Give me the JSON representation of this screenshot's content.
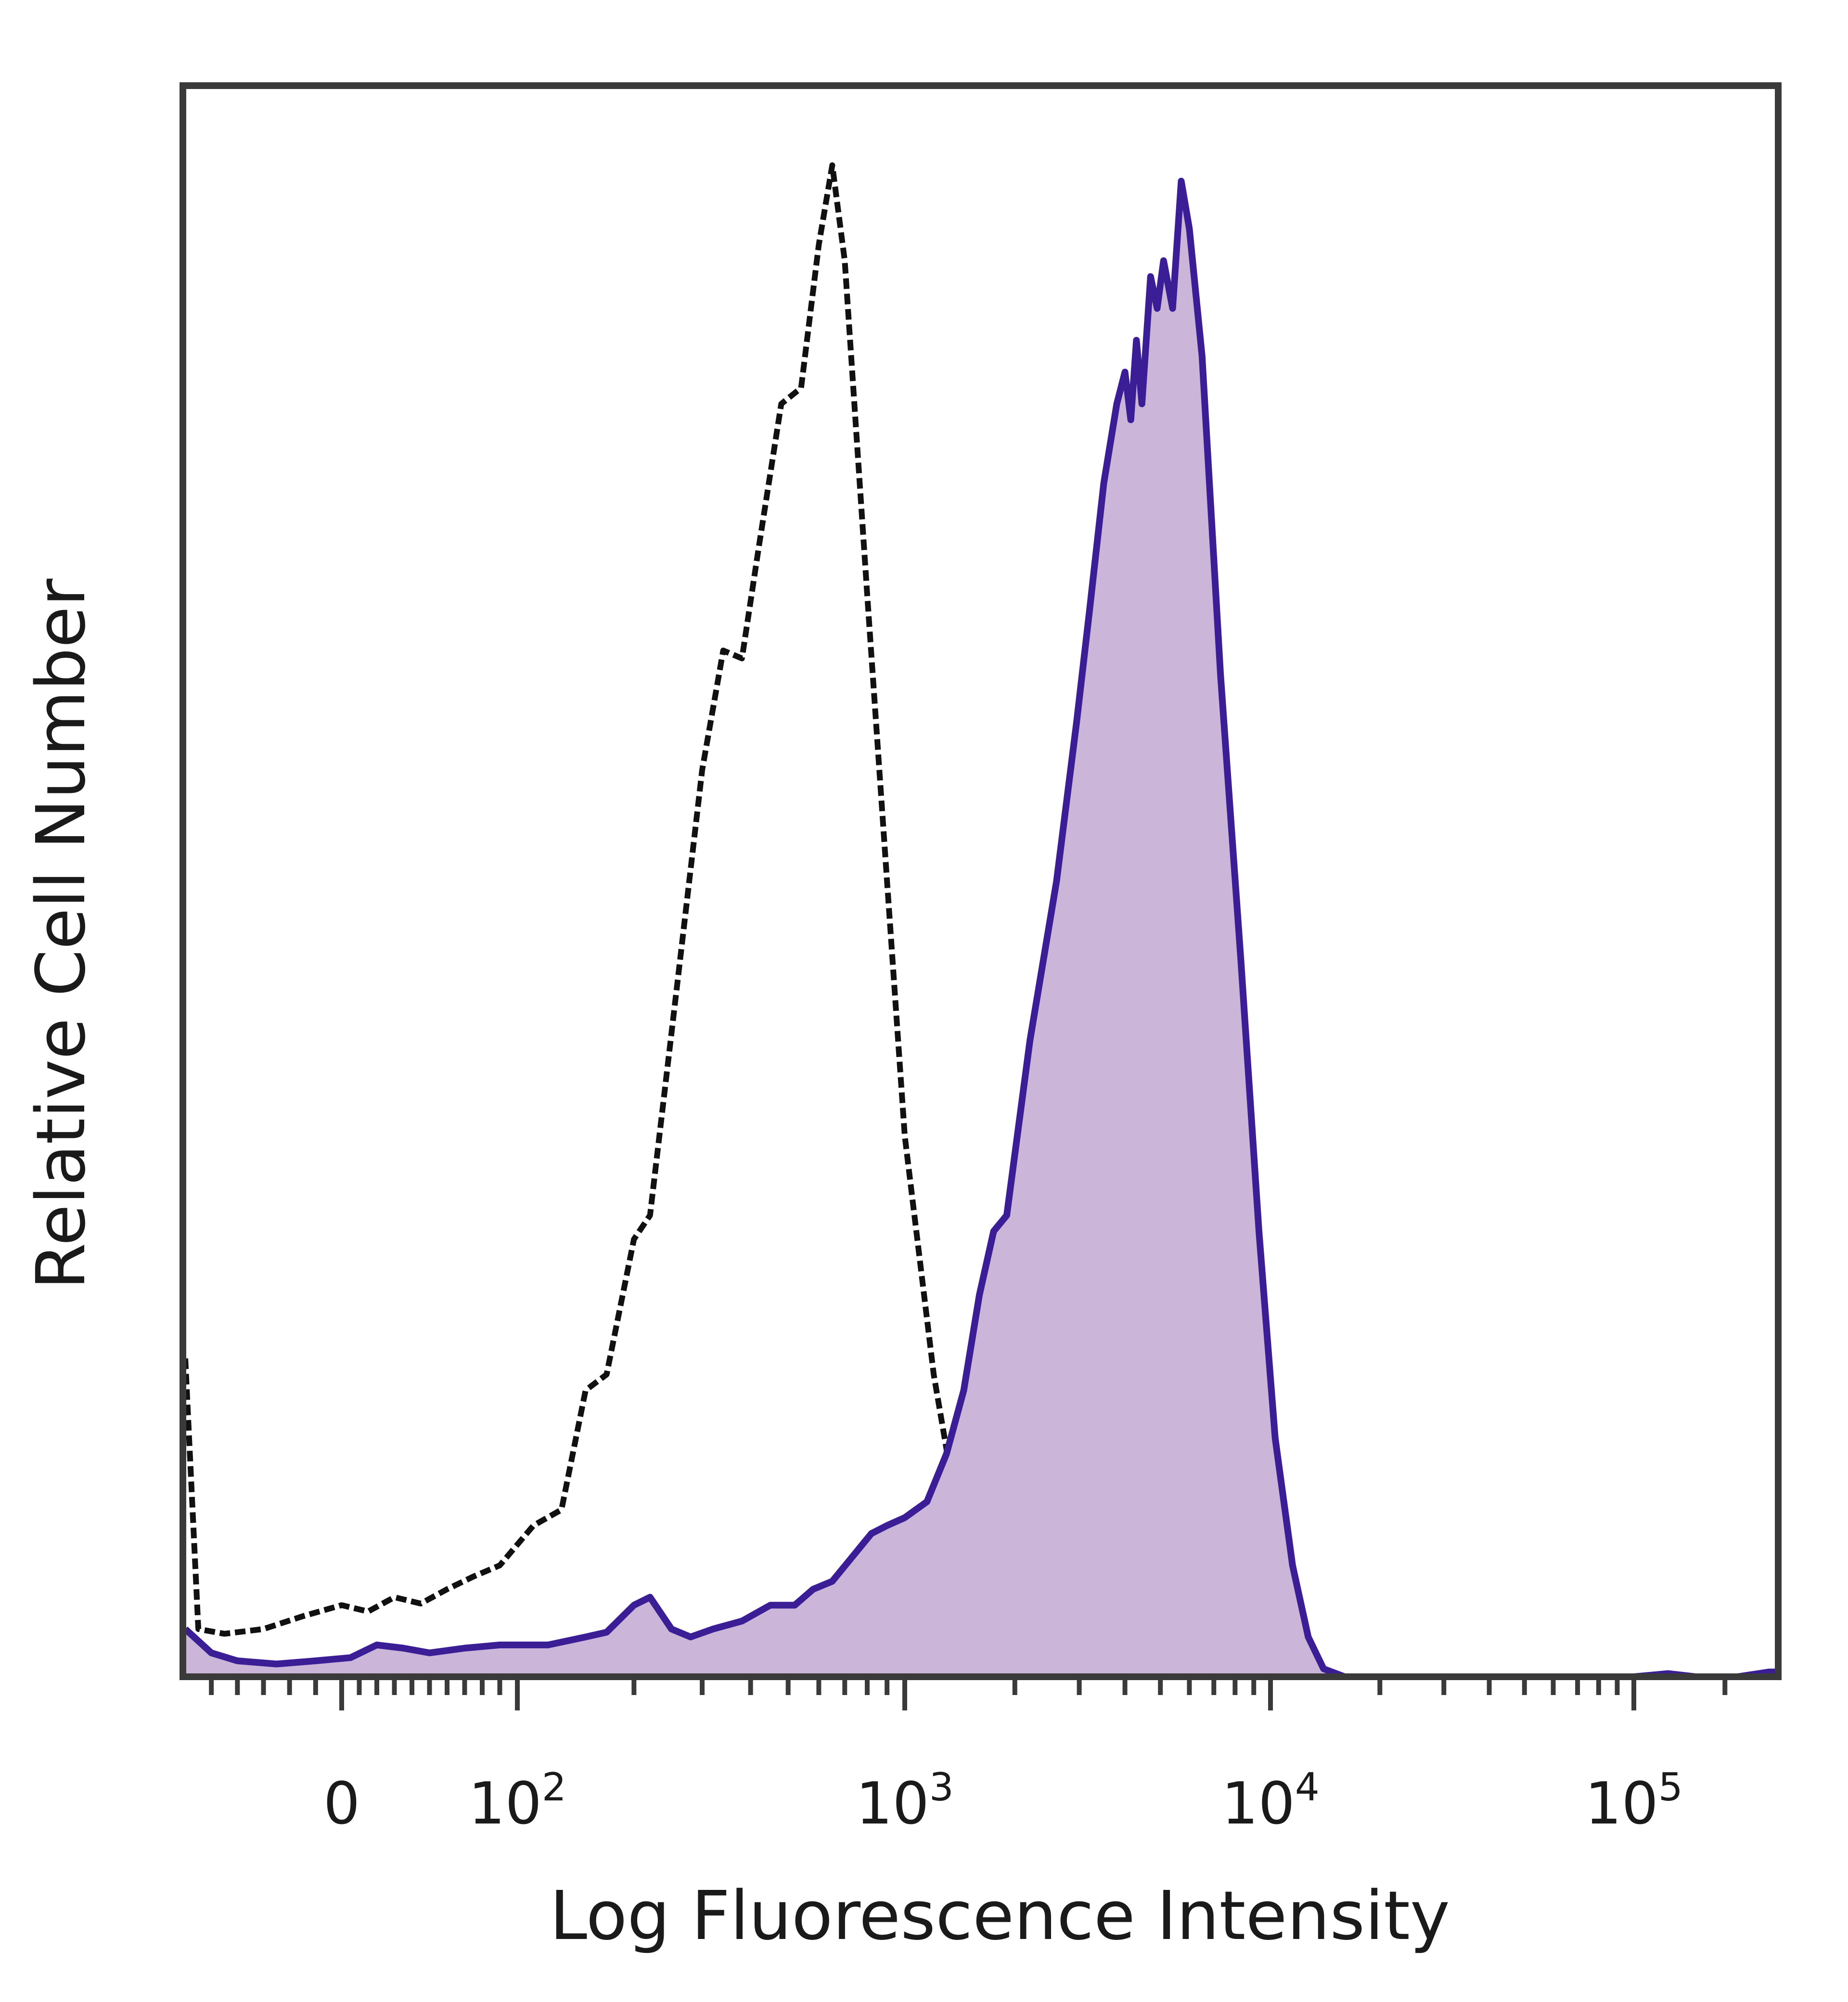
{
  "chart_data": {
    "type": "area",
    "title": "",
    "xlabel": "Log Fluorescence Intensity",
    "ylabel": "Relative Cell Number",
    "x_scale": "biexponential",
    "xlim": [
      -60,
      300000
    ],
    "ylim": [
      0,
      1
    ],
    "grid": false,
    "legend": "none",
    "x_tick_labels": [
      {
        "value": 0,
        "label": "0"
      },
      {
        "value": 100,
        "base": "10",
        "exp": "2"
      },
      {
        "value": 1000,
        "base": "10",
        "exp": "3"
      },
      {
        "value": 10000,
        "base": "10",
        "exp": "4"
      },
      {
        "value": 100000,
        "base": "10",
        "exp": "5"
      }
    ],
    "x_minor_ticks": [
      -50,
      -40,
      -30,
      -20,
      -10,
      10,
      20,
      30,
      40,
      50,
      60,
      70,
      80,
      90,
      200,
      300,
      400,
      500,
      600,
      700,
      800,
      900,
      2000,
      3000,
      4000,
      5000,
      6000,
      7000,
      8000,
      9000,
      20000,
      30000,
      40000,
      50000,
      60000,
      70000,
      80000,
      90000,
      200000
    ],
    "series": [
      {
        "style": "dashed-outline",
        "color": "#111111",
        "points": [
          [
            -60,
            0.2
          ],
          [
            -55,
            0.03
          ],
          [
            -45,
            0.027
          ],
          [
            -30,
            0.03
          ],
          [
            -15,
            0.038
          ],
          [
            0,
            0.045
          ],
          [
            15,
            0.041
          ],
          [
            30,
            0.05
          ],
          [
            45,
            0.046
          ],
          [
            60,
            0.055
          ],
          [
            75,
            0.063
          ],
          [
            90,
            0.07
          ],
          [
            110,
            0.095
          ],
          [
            130,
            0.105
          ],
          [
            150,
            0.18
          ],
          [
            170,
            0.19
          ],
          [
            200,
            0.275
          ],
          [
            220,
            0.29
          ],
          [
            260,
            0.44
          ],
          [
            300,
            0.57
          ],
          [
            340,
            0.645
          ],
          [
            380,
            0.64
          ],
          [
            420,
            0.71
          ],
          [
            480,
            0.8
          ],
          [
            540,
            0.81
          ],
          [
            600,
            0.9
          ],
          [
            650,
            0.95
          ],
          [
            700,
            0.89
          ],
          [
            800,
            0.68
          ],
          [
            900,
            0.5
          ],
          [
            1000,
            0.34
          ],
          [
            1200,
            0.19
          ],
          [
            1400,
            0.1
          ],
          [
            1700,
            0.04
          ],
          [
            2000,
            0.01
          ],
          [
            2300,
            0.002
          ],
          [
            3000,
            0.0
          ],
          [
            300000,
            0.0
          ]
        ]
      },
      {
        "style": "filled",
        "color": "#3b1e96",
        "fill": "#cbb6da",
        "points": [
          [
            -60,
            0.03
          ],
          [
            -50,
            0.015
          ],
          [
            -40,
            0.01
          ],
          [
            -25,
            0.008
          ],
          [
            -10,
            0.01
          ],
          [
            5,
            0.012
          ],
          [
            20,
            0.02
          ],
          [
            35,
            0.018
          ],
          [
            50,
            0.015
          ],
          [
            70,
            0.018
          ],
          [
            90,
            0.02
          ],
          [
            120,
            0.02
          ],
          [
            150,
            0.025
          ],
          [
            170,
            0.028
          ],
          [
            200,
            0.045
          ],
          [
            220,
            0.05
          ],
          [
            250,
            0.03
          ],
          [
            280,
            0.025
          ],
          [
            320,
            0.03
          ],
          [
            380,
            0.035
          ],
          [
            450,
            0.045
          ],
          [
            520,
            0.045
          ],
          [
            580,
            0.055
          ],
          [
            650,
            0.06
          ],
          [
            730,
            0.075
          ],
          [
            820,
            0.09
          ],
          [
            900,
            0.095
          ],
          [
            1000,
            0.1
          ],
          [
            1150,
            0.11
          ],
          [
            1300,
            0.14
          ],
          [
            1450,
            0.18
          ],
          [
            1600,
            0.24
          ],
          [
            1750,
            0.28
          ],
          [
            1900,
            0.29
          ],
          [
            2200,
            0.4
          ],
          [
            2600,
            0.5
          ],
          [
            2950,
            0.6
          ],
          [
            3200,
            0.67
          ],
          [
            3500,
            0.75
          ],
          [
            3800,
            0.8
          ],
          [
            4000,
            0.82
          ],
          [
            4150,
            0.79
          ],
          [
            4300,
            0.84
          ],
          [
            4450,
            0.8
          ],
          [
            4700,
            0.88
          ],
          [
            4900,
            0.86
          ],
          [
            5100,
            0.89
          ],
          [
            5400,
            0.86
          ],
          [
            5700,
            0.94
          ],
          [
            6000,
            0.91
          ],
          [
            6500,
            0.83
          ],
          [
            7300,
            0.63
          ],
          [
            8300,
            0.45
          ],
          [
            9300,
            0.28
          ],
          [
            10300,
            0.15
          ],
          [
            11500,
            0.07
          ],
          [
            12700,
            0.025
          ],
          [
            14000,
            0.005
          ],
          [
            16000,
            0.0
          ],
          [
            100000,
            0.0
          ],
          [
            130000,
            0.002
          ],
          [
            160000,
            0.0
          ],
          [
            220000,
            0.0
          ],
          [
            280000,
            0.003
          ],
          [
            300000,
            0.003
          ]
        ]
      }
    ]
  }
}
